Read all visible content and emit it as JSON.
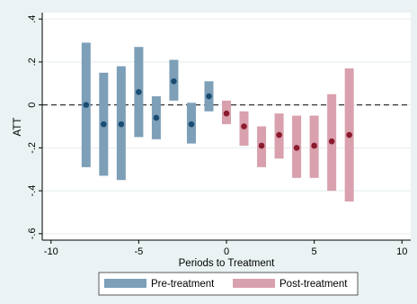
{
  "chart_data": {
    "type": "scatter",
    "title": "",
    "xlabel": "Periods to Treatment",
    "ylabel": "ATT",
    "xlim": [
      -10.5,
      10.5
    ],
    "ylim": [
      -0.63,
      0.43
    ],
    "xticks": [
      -10,
      -5,
      0,
      5,
      10
    ],
    "xtick_labels": [
      "-10",
      "-5",
      "0",
      "5",
      "10"
    ],
    "yticks": [
      -0.6,
      -0.4,
      -0.2,
      0,
      0.2,
      0.4
    ],
    "ytick_labels": [
      "-.6",
      "-.4",
      "-.2",
      "0",
      ".2",
      ".4"
    ],
    "reference_line": {
      "y": 0,
      "style": "dashed"
    },
    "grid": true,
    "legend": "bottom",
    "series": [
      {
        "name": "Pre-treatment",
        "color": "#7d9fb8",
        "point_color": "#1a4d73",
        "x": [
          -8,
          -7,
          -6,
          -5,
          -4,
          -3,
          -2,
          -1
        ],
        "y": [
          0.0,
          -0.09,
          -0.09,
          0.06,
          -0.06,
          0.11,
          -0.09,
          0.04
        ],
        "ci_low": [
          -0.29,
          -0.33,
          -0.35,
          -0.15,
          -0.16,
          0.02,
          -0.18,
          -0.03
        ],
        "ci_high": [
          0.29,
          0.15,
          0.18,
          0.27,
          0.04,
          0.21,
          0.01,
          0.11
        ]
      },
      {
        "name": "Post-treatment",
        "color": "#d9a0ad",
        "point_color": "#8b1a2e",
        "x": [
          0,
          1,
          2,
          3,
          4,
          5,
          6,
          7
        ],
        "y": [
          -0.04,
          -0.1,
          -0.19,
          -0.14,
          -0.2,
          -0.19,
          -0.17,
          -0.14
        ],
        "ci_low": [
          -0.09,
          -0.19,
          -0.29,
          -0.25,
          -0.34,
          -0.34,
          -0.4,
          -0.45
        ],
        "ci_high": [
          0.02,
          -0.03,
          -0.1,
          -0.04,
          -0.05,
          -0.05,
          0.05,
          0.17
        ]
      }
    ]
  }
}
